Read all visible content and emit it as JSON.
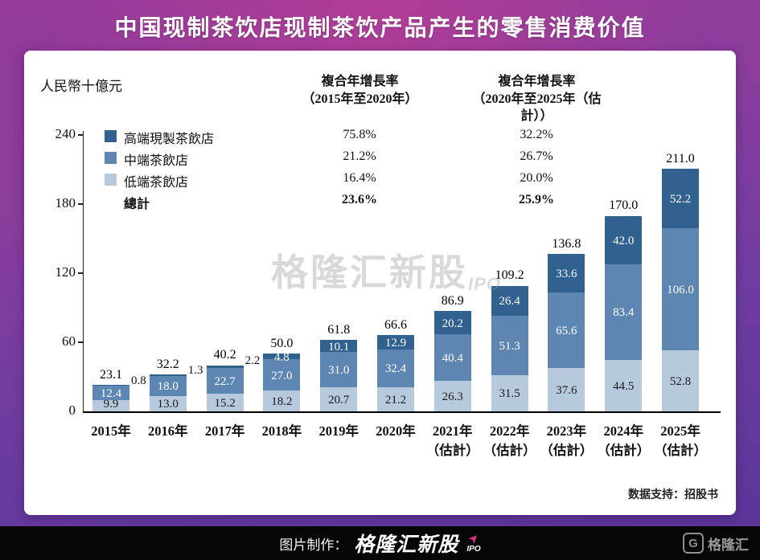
{
  "title": "中国现制茶饮店现制茶饮产品产生的零售消费价值",
  "card": {
    "unit_label": "人民幣十億元",
    "cagr1": {
      "line1": "複合年增長率",
      "line2": "（2015年至2020年）",
      "values": [
        "75.8%",
        "21.2%",
        "16.4%",
        "23.6%"
      ]
    },
    "cagr2": {
      "line1": "複合年增長率",
      "line2": "（2020年至2025年（估計））",
      "values": [
        "32.2%",
        "26.7%",
        "20.0%",
        "25.9%"
      ]
    },
    "legend": [
      {
        "label": "高端現製茶飲店",
        "color": "#30618f"
      },
      {
        "label": "中端茶飲店",
        "color": "#5d86b3"
      },
      {
        "label": "低端茶飲店",
        "color": "#b7c9dc"
      },
      {
        "label": "總計",
        "color": null
      }
    ],
    "watermark": {
      "text": "格隆汇新股",
      "sub": "IPO"
    },
    "source": "数据支持：招股书"
  },
  "chart_data": {
    "type": "bar",
    "stacked": true,
    "title": "中国现制茶饮店现制茶饮产品产生的零售消费价值",
    "unit": "人民幣十億元",
    "categories": [
      "2015年",
      "2016年",
      "2017年",
      "2018年",
      "2019年",
      "2020年",
      "2021年",
      "2022年",
      "2023年",
      "2024年",
      "2025年"
    ],
    "estimated_note": "（估計）",
    "estimated_from_index": 6,
    "series": [
      {
        "name": "低端茶飲店",
        "color": "#b7c9dc",
        "values": [
          9.9,
          13.0,
          15.2,
          18.2,
          20.7,
          21.2,
          26.3,
          31.5,
          37.6,
          44.5,
          52.8
        ]
      },
      {
        "name": "中端茶飲店",
        "color": "#5d86b3",
        "values": [
          12.4,
          18.0,
          22.7,
          27.0,
          31.0,
          32.4,
          40.4,
          51.3,
          65.6,
          83.4,
          106.0
        ]
      },
      {
        "name": "高端現製茶飲店",
        "color": "#30618f",
        "values": [
          0.8,
          1.3,
          2.2,
          4.8,
          10.1,
          12.9,
          20.2,
          26.4,
          33.6,
          42.0,
          52.2
        ]
      }
    ],
    "totals": [
      23.1,
      32.2,
      40.2,
      50.0,
      61.8,
      66.6,
      86.9,
      109.2,
      136.8,
      170.0,
      211.0
    ],
    "ylim": [
      0,
      240
    ],
    "yticks": [
      0,
      60,
      120,
      180,
      240
    ],
    "legend_position": "top-left",
    "grid": false,
    "cagr_2015_2020": {
      "高端現製茶飲店": "75.8%",
      "中端茶飲店": "21.2%",
      "低端茶飲店": "16.4%",
      "總計": "23.6%"
    },
    "cagr_2020_2025_est": {
      "高端現製茶飲店": "32.2%",
      "中端茶飲店": "26.7%",
      "低端茶飲店": "20.0%",
      "總計": "25.9%"
    }
  },
  "footer": {
    "made_by": "图片制作：",
    "brand": "格隆汇新股",
    "brand_sub": "IPO",
    "logo_right": "格隆汇",
    "accent_color": "#e8308a"
  }
}
